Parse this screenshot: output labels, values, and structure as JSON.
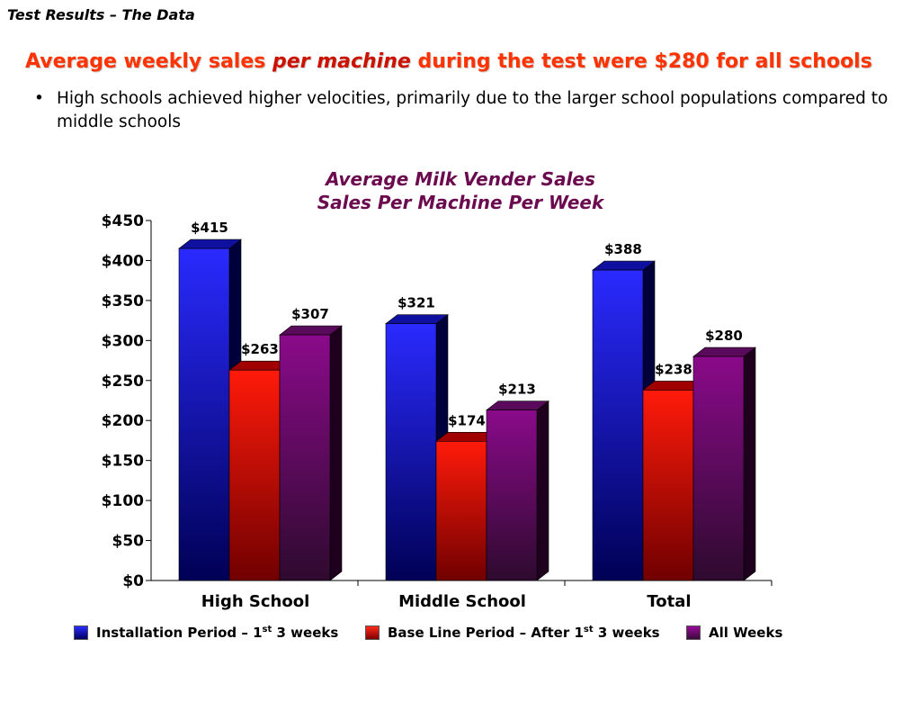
{
  "header": {
    "slide_label": "Test Results – The Data",
    "headline_part1": "Average weekly sales ",
    "headline_em": "per machine",
    "headline_part2": " during the test were $280 for all schools",
    "bullet": "High schools achieved higher velocities, primarily due to the larger school populations compared to middle schools"
  },
  "legend": {
    "installation_a": "Installation Period – 1",
    "installation_sup": "st",
    "installation_b": " 3 weeks",
    "baseline_a": "Base Line Period –  After 1",
    "baseline_sup": "st",
    "baseline_b": " 3 weeks",
    "all": "All Weeks"
  },
  "colors": {
    "installation": "#1a1aff",
    "baseline": "#ff1a1a",
    "all_weeks": "#8a0a8a"
  },
  "chart_data": {
    "type": "bar",
    "title": "Average Milk Vender Sales",
    "subtitle": "Sales Per Machine Per Week",
    "categories": [
      "High School",
      "Middle School",
      "Total"
    ],
    "series": [
      {
        "name": "Installation Period – 1st 3 weeks",
        "values": [
          415,
          321,
          388
        ],
        "labels": [
          "$415",
          "$321",
          "$388"
        ]
      },
      {
        "name": "Base Line Period –  After 1st 3 weeks",
        "values": [
          263,
          174,
          238
        ],
        "labels": [
          "$263",
          "$174",
          "$238"
        ]
      },
      {
        "name": "All Weeks",
        "values": [
          307,
          213,
          280
        ],
        "labels": [
          "$307",
          "$213",
          "$280"
        ]
      }
    ],
    "ylim": [
      0,
      450
    ],
    "yticks": [
      0,
      50,
      100,
      150,
      200,
      250,
      300,
      350,
      400,
      450
    ],
    "ytick_labels": [
      "$0",
      "$50",
      "$100",
      "$150",
      "$200",
      "$250",
      "$300",
      "$350",
      "$400",
      "$450"
    ],
    "xlabel": "",
    "ylabel": "",
    "grid": false,
    "legend_position": "bottom",
    "style": "3d-columns"
  }
}
